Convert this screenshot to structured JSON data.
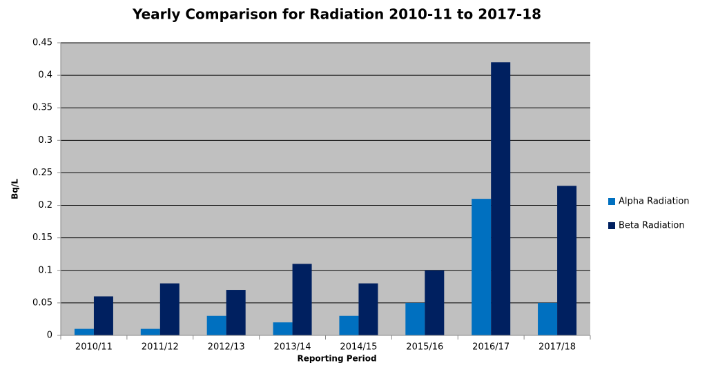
{
  "chart_data": {
    "type": "bar",
    "title": "Yearly Comparison for Radiation 2010-11 to 2017-18",
    "xlabel": "Reporting Period",
    "ylabel": "Bq/L",
    "categories": [
      "2010/11",
      "2011/12",
      "2012/13",
      "2013/14",
      "2014/15",
      "2015/16",
      "2016/17",
      "2017/18"
    ],
    "series": [
      {
        "name": "Alpha Radiation",
        "color": "#0070c0",
        "values": [
          0.01,
          0.01,
          0.03,
          0.02,
          0.03,
          0.05,
          0.21,
          0.05
        ]
      },
      {
        "name": "Beta Radiation",
        "color": "#002060",
        "values": [
          0.06,
          0.08,
          0.07,
          0.11,
          0.08,
          0.1,
          0.42,
          0.23
        ]
      }
    ],
    "ylim": [
      0,
      0.45
    ],
    "yticks": [
      0,
      0.05,
      0.1,
      0.15,
      0.2,
      0.25,
      0.3,
      0.35,
      0.4,
      0.45
    ],
    "grid": true,
    "plot_background": "#c0c0c0",
    "legend": "right"
  }
}
